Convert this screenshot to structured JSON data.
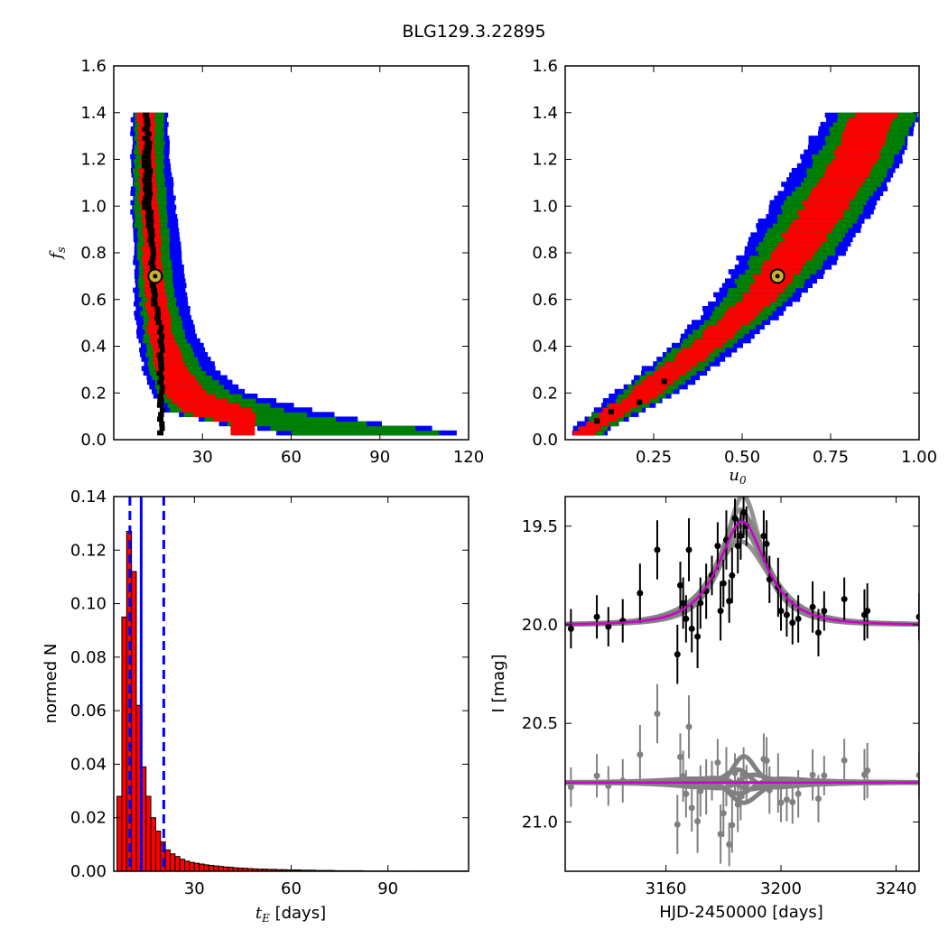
{
  "figure": {
    "title": "BLG129.3.22895"
  },
  "chart_data": [
    {
      "panel": "top-left",
      "type": "heatmap",
      "xlabel": "",
      "ylabel": "f_s",
      "xlim": [
        0,
        120
      ],
      "ylim": [
        0.0,
        1.6
      ],
      "xticks": [
        "30",
        "60",
        "90",
        "120"
      ],
      "yticks": [
        "0.0",
        "0.2",
        "0.4",
        "0.6",
        "0.8",
        "1.0",
        "1.2",
        "1.4",
        "1.6"
      ],
      "colors": {
        "outer": "#0000ff",
        "mid": "#008000",
        "inner": "#ff0000",
        "peak": "#000000"
      },
      "marker": {
        "x": 14,
        "y": 0.7,
        "face": "#c9b037",
        "edge": "#000000"
      },
      "contour_profile": [
        {
          "y": 1.4,
          "blue": [
            6,
            18
          ],
          "green": [
            7,
            17
          ],
          "red": [
            8,
            14
          ],
          "black": [
            10,
            12
          ]
        },
        {
          "y": 1.2,
          "blue": [
            6,
            19
          ],
          "green": [
            7,
            17
          ],
          "red": [
            9,
            14
          ],
          "black": [
            10,
            13
          ]
        },
        {
          "y": 1.0,
          "blue": [
            6,
            21
          ],
          "green": [
            7,
            18
          ],
          "red": [
            9,
            15
          ],
          "black": [
            10,
            13
          ]
        },
        {
          "y": 0.8,
          "blue": [
            7,
            23
          ],
          "green": [
            8,
            19
          ],
          "red": [
            10,
            16
          ],
          "black": [
            12,
            14
          ]
        },
        {
          "y": 0.6,
          "blue": [
            7,
            25
          ],
          "green": [
            9,
            21
          ],
          "red": [
            11,
            18
          ],
          "black": [
            13,
            15
          ]
        },
        {
          "y": 0.45,
          "blue": [
            8,
            28
          ],
          "green": [
            10,
            24
          ],
          "red": [
            12,
            20
          ],
          "black": [
            15,
            17
          ]
        },
        {
          "y": 0.3,
          "blue": [
            10,
            35
          ],
          "green": [
            12,
            30
          ],
          "red": [
            14,
            25
          ]
        },
        {
          "y": 0.2,
          "blue": [
            13,
            45
          ],
          "green": [
            15,
            40
          ],
          "red": [
            17,
            32
          ]
        },
        {
          "y": 0.12,
          "blue": [
            18,
            70
          ],
          "green": [
            20,
            60
          ],
          "red": [
            23,
            48
          ]
        },
        {
          "y": 0.07,
          "blue": [
            35,
            90
          ],
          "green": [
            38,
            85
          ],
          "red": [
            40,
            48
          ]
        },
        {
          "y": 0.04,
          "blue": [
            55,
            116
          ],
          "green": [
            60,
            110
          ],
          "red": []
        }
      ]
    },
    {
      "panel": "top-right",
      "type": "heatmap",
      "xlabel": "u_0",
      "ylabel": "",
      "xlim": [
        0.0,
        1.0
      ],
      "ylim": [
        0.0,
        1.6
      ],
      "xticks": [
        "0.25",
        "0.50",
        "0.75",
        "1.00"
      ],
      "yticks": [
        "0.0",
        "0.2",
        "0.4",
        "0.6",
        "0.8",
        "1.0",
        "1.2",
        "1.4",
        "1.6"
      ],
      "colors": {
        "outer": "#0000ff",
        "mid": "#008000",
        "inner": "#ff0000",
        "peak": "#000000"
      },
      "marker": {
        "x": 0.6,
        "y": 0.7,
        "face": "#c9b037",
        "edge": "#000000"
      },
      "contour_profile": [
        {
          "y": 0.04,
          "blue": [
            0.02,
            0.12
          ],
          "green": [
            0.03,
            0.11
          ],
          "red": [
            0.03,
            0.09
          ]
        },
        {
          "y": 0.2,
          "blue": [
            0.14,
            0.32
          ],
          "green": [
            0.16,
            0.3
          ],
          "red": [
            0.18,
            0.27
          ]
        },
        {
          "y": 0.4,
          "blue": [
            0.3,
            0.5
          ],
          "green": [
            0.32,
            0.47
          ],
          "red": [
            0.35,
            0.44
          ]
        },
        {
          "y": 0.6,
          "blue": [
            0.42,
            0.66
          ],
          "green": [
            0.45,
            0.63
          ],
          "red": [
            0.49,
            0.59
          ]
        },
        {
          "y": 0.8,
          "blue": [
            0.5,
            0.79
          ],
          "green": [
            0.54,
            0.76
          ],
          "red": [
            0.59,
            0.71
          ]
        },
        {
          "y": 1.0,
          "blue": [
            0.58,
            0.88
          ],
          "green": [
            0.62,
            0.85
          ],
          "red": [
            0.67,
            0.8
          ]
        },
        {
          "y": 1.2,
          "blue": [
            0.66,
            0.95
          ],
          "green": [
            0.7,
            0.93
          ],
          "red": [
            0.75,
            0.88
          ]
        },
        {
          "y": 1.4,
          "blue": [
            0.74,
            1.0
          ],
          "green": [
            0.78,
            1.0
          ],
          "red": [
            0.82,
            0.94
          ]
        }
      ],
      "black_points": [
        [
          0.09,
          0.08
        ],
        [
          0.13,
          0.12
        ],
        [
          0.21,
          0.16
        ],
        [
          0.28,
          0.25
        ],
        [
          0.6,
          0.7
        ]
      ]
    },
    {
      "panel": "bottom-left",
      "type": "bar",
      "xlabel": "t_E [days]",
      "ylabel": "normed N",
      "xlim": [
        5,
        115
      ],
      "ylim": [
        0.0,
        0.14
      ],
      "xticks": [
        "30",
        "60",
        "90"
      ],
      "yticks": [
        "0.00",
        "0.02",
        "0.04",
        "0.06",
        "0.08",
        "0.10",
        "0.12",
        "0.14"
      ],
      "bar_color": "#ff0000",
      "bin_width": 1.5,
      "bin_start": 6,
      "values": [
        0.028,
        0.095,
        0.127,
        0.112,
        0.062,
        0.039,
        0.028,
        0.02,
        0.015,
        0.011,
        0.008,
        0.0065,
        0.0055,
        0.0045,
        0.0038,
        0.0033,
        0.003,
        0.0027,
        0.0024,
        0.0022,
        0.002,
        0.0018,
        0.0016,
        0.0015,
        0.0013,
        0.0012,
        0.0011,
        0.001,
        0.0009,
        0.0008,
        0.0008,
        0.0007,
        0.0007,
        0.0006,
        0.0006,
        0.0005,
        0.0005,
        0.0005,
        0.0004,
        0.0004,
        0.0004,
        0.0003,
        0.0003,
        0.0003,
        0.0003,
        0.0002,
        0.0002,
        0.0002,
        0.0002,
        0.0002,
        0.0002,
        0.0001,
        0.0001,
        0.0001,
        0.0001,
        0.0001,
        0.0001,
        0.0001,
        0.0001,
        0.0001,
        0.0001,
        0.0001,
        0.0001,
        0.0001,
        0.0001,
        0.0001,
        0.0001,
        0.0001,
        0.0001,
        0.0001,
        0.0001,
        0.0001,
        0.0001
      ],
      "lines": [
        {
          "x": 10,
          "style": "dashed",
          "color": "#0000ff"
        },
        {
          "x": 13.5,
          "style": "solid",
          "color": "#0000ff"
        },
        {
          "x": 20.5,
          "style": "dashed",
          "color": "#0000ff"
        }
      ]
    },
    {
      "panel": "bottom-right",
      "type": "scatter",
      "xlabel": "HJD-2450000 [days]",
      "ylabel": "I [mag]",
      "xlim": [
        3125,
        3248
      ],
      "ylim": [
        21.25,
        19.35
      ],
      "xticks": [
        "3160",
        "3200",
        "3240"
      ],
      "yticks": [
        "19.5",
        "20.0",
        "20.5",
        "21.0"
      ],
      "model": {
        "t0": 3186.5,
        "tE": 13.5,
        "u0": 0.6,
        "fs": 0.7,
        "baseline": 20.0,
        "color": "#cc00cc"
      },
      "residual_offset": 20.8,
      "series": [
        {
          "color": "#000000",
          "points": [
            [
              3127,
              20.02,
              0.1
            ],
            [
              3136,
              19.96,
              0.11
            ],
            [
              3140,
              20.01,
              0.1
            ],
            [
              3145,
              19.98,
              0.11
            ],
            [
              3151,
              19.84,
              0.15
            ],
            [
              3157,
              19.62,
              0.15
            ],
            [
              3164,
              20.15,
              0.15
            ],
            [
              3165,
              19.8,
              0.12
            ],
            [
              3166,
              19.89,
              0.13
            ],
            [
              3167,
              19.97,
              0.12
            ],
            [
              3168,
              19.62,
              0.16
            ],
            [
              3169,
              20.02,
              0.12
            ],
            [
              3171,
              20.06,
              0.16
            ],
            [
              3172,
              19.89,
              0.13
            ],
            [
              3174,
              19.83,
              0.14
            ],
            [
              3176,
              19.75,
              0.1
            ],
            [
              3178,
              19.6,
              0.12
            ],
            [
              3179,
              19.93,
              0.15
            ],
            [
              3180,
              19.79,
              0.12
            ],
            [
              3181,
              19.57,
              0.15
            ],
            [
              3182,
              19.88,
              0.11
            ],
            [
              3183,
              19.75,
              0.14
            ],
            [
              3184,
              19.46,
              0.1
            ],
            [
              3185,
              19.6,
              0.14
            ],
            [
              3186,
              19.55,
              0.12
            ],
            [
              3187,
              19.43,
              0.13
            ],
            [
              3188,
              19.5,
              0.1
            ],
            [
              3194,
              19.55,
              0.13
            ],
            [
              3195,
              19.59,
              0.12
            ],
            [
              3196,
              19.77,
              0.12
            ],
            [
              3199,
              19.81,
              0.15
            ],
            [
              3200,
              19.93,
              0.1
            ],
            [
              3202,
              19.95,
              0.11
            ],
            [
              3204,
              19.99,
              0.11
            ],
            [
              3206,
              19.97,
              0.12
            ],
            [
              3211,
              19.91,
              0.13
            ],
            [
              3213,
              20.04,
              0.12
            ],
            [
              3215,
              19.93,
              0.1
            ],
            [
              3222,
              19.87,
              0.11
            ],
            [
              3229,
              19.95,
              0.13
            ],
            [
              3230,
              19.93,
              0.14
            ],
            [
              3248,
              19.96,
              0.12
            ]
          ]
        }
      ]
    }
  ]
}
